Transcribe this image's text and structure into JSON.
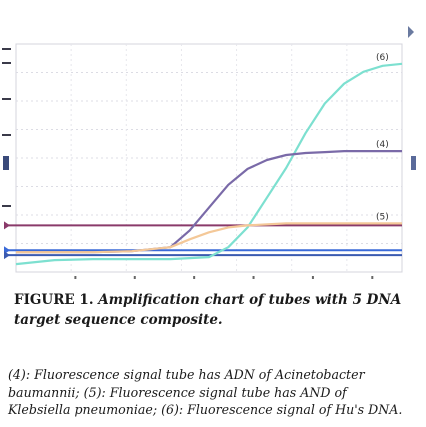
{
  "chart_data": {
    "type": "line",
    "grid": true,
    "series": [
      {
        "name": "(6)",
        "color": "#7de0d0",
        "x": [
          0,
          10,
          20,
          30,
          40,
          45,
          50,
          55,
          60,
          65,
          70,
          75,
          80,
          85,
          90,
          95,
          100
        ],
        "y": [
          -0.12,
          -0.08,
          -0.07,
          -0.07,
          -0.07,
          -0.06,
          -0.05,
          0.05,
          0.25,
          0.55,
          0.85,
          1.2,
          1.5,
          1.7,
          1.82,
          1.88,
          1.9
        ]
      },
      {
        "name": "(4)",
        "color": "#7a6aa8",
        "x": [
          0,
          10,
          20,
          30,
          40,
          45,
          50,
          55,
          60,
          65,
          70,
          75,
          80,
          85,
          90,
          95,
          100
        ],
        "y": [
          0,
          0,
          0,
          0.01,
          0.05,
          0.22,
          0.45,
          0.68,
          0.84,
          0.93,
          0.98,
          1.0,
          1.01,
          1.02,
          1.02,
          1.02,
          1.02
        ]
      },
      {
        "name": "(5)",
        "color": "#f4c898",
        "x": [
          0,
          10,
          20,
          30,
          40,
          45,
          50,
          55,
          60,
          65,
          70,
          80,
          90,
          100
        ],
        "y": [
          0,
          0,
          0,
          0.01,
          0.05,
          0.13,
          0.2,
          0.25,
          0.27,
          0.28,
          0.29,
          0.29,
          0.29,
          0.29
        ]
      }
    ],
    "threshold_lines": [
      {
        "y": 0.27,
        "color": "#8a3a6a"
      },
      {
        "y": 0.02,
        "color": "#3a6ad8"
      },
      {
        "y": -0.03,
        "color": "#3a5ab0"
      }
    ],
    "series_labels": [
      "(6)",
      "(4)",
      "(5)"
    ],
    "ylim": [
      -0.2,
      2.1
    ],
    "xlim": [
      0,
      100
    ]
  },
  "caption": {
    "label": "FIGURE 1",
    "text": "Amplification chart of tubes with 5 DNA target sequence composite."
  },
  "legend_note": "(4): Fluorescence signal tube has ADN of Acinetobacter baumannii; (5): Fluorescence signal tube  has AND of Klebsiella pneumoniae; (6): Fluorescence signal of Hu's DNA."
}
